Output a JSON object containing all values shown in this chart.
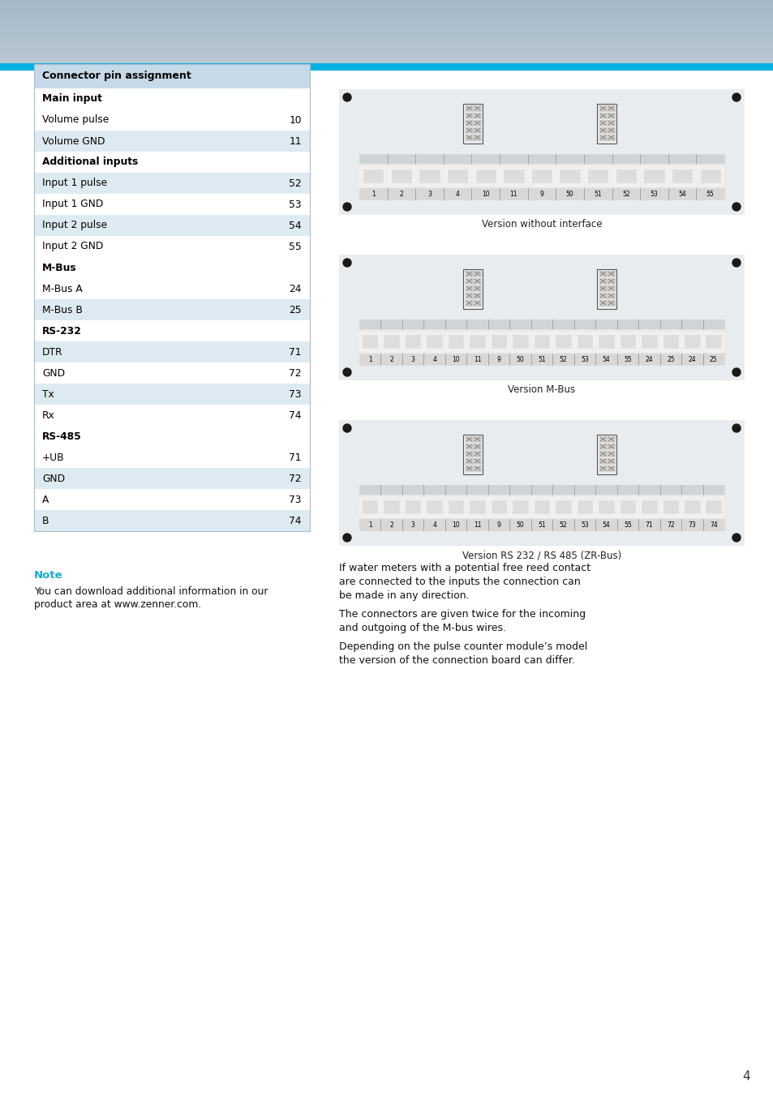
{
  "page_bg": "#ffffff",
  "table_header_bg": "#c5d9e8",
  "table_row_light": "#deeaf2",
  "table_row_white": "#ffffff",
  "table_border": "#aabccc",
  "note_color": "#1aabdb",
  "page_number": "4",
  "table_title": "Connector pin assignment",
  "table_rows": [
    {
      "label": "Main input",
      "value": "",
      "bold": true,
      "section": true
    },
    {
      "label": "Volume pulse",
      "value": "10",
      "bold": false,
      "section": false
    },
    {
      "label": "Volume GND",
      "value": "11",
      "bold": false,
      "section": false
    },
    {
      "label": "Additional inputs",
      "value": "",
      "bold": true,
      "section": true
    },
    {
      "label": "Input 1 pulse",
      "value": "52",
      "bold": false,
      "section": false
    },
    {
      "label": "Input 1 GND",
      "value": "53",
      "bold": false,
      "section": false
    },
    {
      "label": "Input 2 pulse",
      "value": "54",
      "bold": false,
      "section": false
    },
    {
      "label": "Input 2 GND",
      "value": "55",
      "bold": false,
      "section": false
    },
    {
      "label": "M-Bus",
      "value": "",
      "bold": true,
      "section": true
    },
    {
      "label": "M-Bus A",
      "value": "24",
      "bold": false,
      "section": false
    },
    {
      "label": "M-Bus B",
      "value": "25",
      "bold": false,
      "section": false
    },
    {
      "label": "RS-232",
      "value": "",
      "bold": true,
      "section": true
    },
    {
      "label": "DTR",
      "value": "71",
      "bold": false,
      "section": false
    },
    {
      "label": "GND",
      "value": "72",
      "bold": false,
      "section": false
    },
    {
      "label": "Tx",
      "value": "73",
      "bold": false,
      "section": false
    },
    {
      "label": "Rx",
      "value": "74",
      "bold": false,
      "section": false
    },
    {
      "label": "RS-485",
      "value": "",
      "bold": true,
      "section": true
    },
    {
      "label": "+UB",
      "value": "71",
      "bold": false,
      "section": false
    },
    {
      "label": "GND",
      "value": "72",
      "bold": false,
      "section": false
    },
    {
      "label": "A",
      "value": "73",
      "bold": false,
      "section": false
    },
    {
      "label": "B",
      "value": "74",
      "bold": false,
      "section": false
    }
  ],
  "note_title": "Note",
  "note_line1": "You can download additional information in our",
  "note_line2": "product area at www.zenner.com.",
  "diagram1_caption": "Version without interface",
  "diagram1_pins": [
    "1",
    "2",
    "3",
    "4",
    "10",
    "11",
    "9",
    "50",
    "51",
    "52",
    "53",
    "54",
    "55"
  ],
  "diagram2_caption": "Version M-Bus",
  "diagram2_pins": [
    "1",
    "2",
    "3",
    "4",
    "10",
    "11",
    "9",
    "50",
    "51",
    "52",
    "53",
    "54",
    "55",
    "24",
    "25",
    "24",
    "25"
  ],
  "diagram3_caption": "Version RS 232 / RS 485 (ZR-Bus)",
  "diagram3_pins": [
    "1",
    "2",
    "3",
    "4",
    "10",
    "11",
    "9",
    "50",
    "51",
    "52",
    "53",
    "54",
    "55",
    "71",
    "72",
    "73",
    "74"
  ],
  "right_para1_lines": [
    "If water meters with a potential free reed contact",
    "are connected to the inputs the connection can",
    "be made in any direction."
  ],
  "right_para2_lines": [
    "The connectors are given twice for the incoming",
    "and outgoing of the M-bus wires."
  ],
  "right_para3_lines": [
    "Depending on the pulse counter module’s model",
    "the version of the connection board can differ."
  ]
}
